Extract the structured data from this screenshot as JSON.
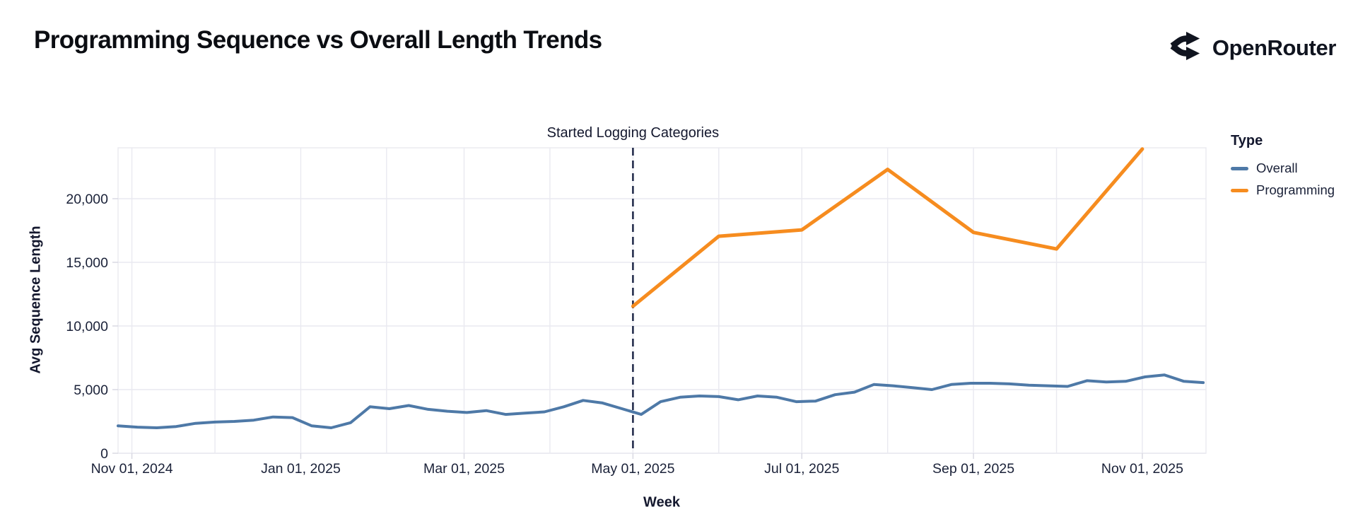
{
  "header": {
    "title": "Programming Sequence vs Overall Length Trends",
    "brand": "OpenRouter"
  },
  "chart_data": {
    "type": "line",
    "title": "Programming Sequence vs Overall Length Trends",
    "xlabel": "Week",
    "ylabel": "Avg Sequence Length",
    "legend_title": "Type",
    "legend_position": "right",
    "grid": "on",
    "background_color": "#ffffff",
    "grid_color": "#e9e9f0",
    "tick_color": "#d7d7e1",
    "text_color": "#1a2138",
    "annotation_color": "#1d2647",
    "x_domain": [
      "2024-10-27",
      "2025-11-24"
    ],
    "ylim": [
      0,
      24000
    ],
    "x_gridlines": "monthly",
    "x_ticks": [
      {
        "date": "2024-11-01",
        "label": "Nov 01, 2024"
      },
      {
        "date": "2025-01-01",
        "label": "Jan 01, 2025"
      },
      {
        "date": "2025-03-01",
        "label": "Mar 01, 2025"
      },
      {
        "date": "2025-05-01",
        "label": "May 01, 2025"
      },
      {
        "date": "2025-07-01",
        "label": "Jul 01, 2025"
      },
      {
        "date": "2025-09-01",
        "label": "Sep 01, 2025"
      },
      {
        "date": "2025-11-01",
        "label": "Nov 01, 2025"
      }
    ],
    "y_ticks": [
      {
        "value": 0,
        "label": "0"
      },
      {
        "value": 5000,
        "label": "5,000"
      },
      {
        "value": 10000,
        "label": "10,000"
      },
      {
        "value": 15000,
        "label": "15,000"
      },
      {
        "value": 20000,
        "label": "20,000"
      }
    ],
    "annotation": {
      "date": "2025-05-01",
      "label": "Started Logging Categories"
    },
    "series": [
      {
        "name": "Overall",
        "color": "#4e79a7",
        "width": 4,
        "points": [
          [
            "2024-10-27",
            2150
          ],
          [
            "2024-11-03",
            2050
          ],
          [
            "2024-11-10",
            2000
          ],
          [
            "2024-11-17",
            2100
          ],
          [
            "2024-11-24",
            2350
          ],
          [
            "2024-12-01",
            2450
          ],
          [
            "2024-12-08",
            2500
          ],
          [
            "2024-12-15",
            2600
          ],
          [
            "2024-12-22",
            2850
          ],
          [
            "2024-12-29",
            2800
          ],
          [
            "2025-01-05",
            2150
          ],
          [
            "2025-01-12",
            2000
          ],
          [
            "2025-01-19",
            2400
          ],
          [
            "2025-01-26",
            3650
          ],
          [
            "2025-02-02",
            3500
          ],
          [
            "2025-02-09",
            3750
          ],
          [
            "2025-02-16",
            3450
          ],
          [
            "2025-02-23",
            3300
          ],
          [
            "2025-03-02",
            3200
          ],
          [
            "2025-03-09",
            3350
          ],
          [
            "2025-03-16",
            3050
          ],
          [
            "2025-03-23",
            3150
          ],
          [
            "2025-03-30",
            3250
          ],
          [
            "2025-04-06",
            3650
          ],
          [
            "2025-04-13",
            4150
          ],
          [
            "2025-04-20",
            3950
          ],
          [
            "2025-04-27",
            3500
          ],
          [
            "2025-05-04",
            3050
          ],
          [
            "2025-05-11",
            4050
          ],
          [
            "2025-05-18",
            4400
          ],
          [
            "2025-05-25",
            4500
          ],
          [
            "2025-06-01",
            4450
          ],
          [
            "2025-06-08",
            4200
          ],
          [
            "2025-06-15",
            4500
          ],
          [
            "2025-06-22",
            4400
          ],
          [
            "2025-06-29",
            4050
          ],
          [
            "2025-07-06",
            4100
          ],
          [
            "2025-07-13",
            4600
          ],
          [
            "2025-07-20",
            4800
          ],
          [
            "2025-07-27",
            5400
          ],
          [
            "2025-08-03",
            5300
          ],
          [
            "2025-08-10",
            5150
          ],
          [
            "2025-08-17",
            5000
          ],
          [
            "2025-08-24",
            5400
          ],
          [
            "2025-08-31",
            5500
          ],
          [
            "2025-09-07",
            5500
          ],
          [
            "2025-09-14",
            5450
          ],
          [
            "2025-09-21",
            5350
          ],
          [
            "2025-09-28",
            5300
          ],
          [
            "2025-10-05",
            5250
          ],
          [
            "2025-10-12",
            5700
          ],
          [
            "2025-10-19",
            5600
          ],
          [
            "2025-10-26",
            5650
          ],
          [
            "2025-11-02",
            6000
          ],
          [
            "2025-11-09",
            6150
          ],
          [
            "2025-11-16",
            5650
          ],
          [
            "2025-11-23",
            5550
          ]
        ]
      },
      {
        "name": "Programming",
        "color": "#f68c1f",
        "width": 5,
        "points": [
          [
            "2025-05-01",
            11550
          ],
          [
            "2025-06-01",
            17050
          ],
          [
            "2025-07-01",
            17550
          ],
          [
            "2025-08-01",
            22300
          ],
          [
            "2025-09-01",
            17350
          ],
          [
            "2025-10-01",
            16050
          ],
          [
            "2025-11-01",
            23900
          ]
        ]
      }
    ]
  }
}
